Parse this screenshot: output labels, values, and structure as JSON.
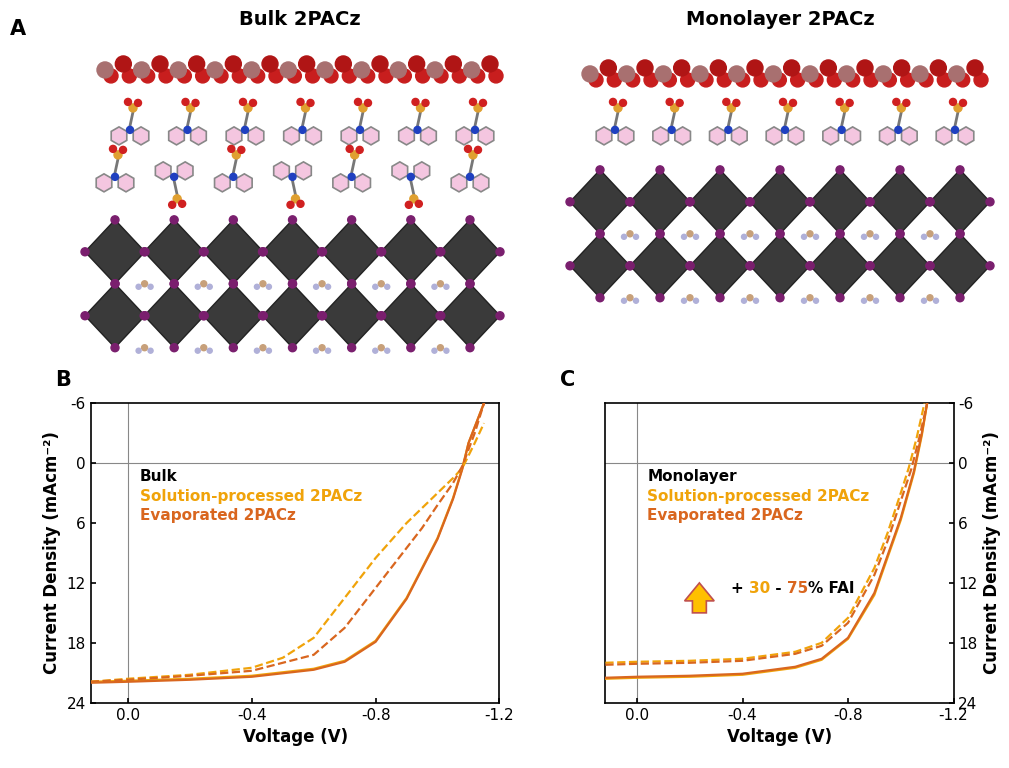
{
  "panel_a": {
    "label": "A",
    "diagrams": [
      {
        "title": "Bulk 2PACz"
      },
      {
        "title": "Monolayer 2PACz"
      }
    ]
  },
  "chart_data": [
    {
      "type": "line",
      "panel_label": "B",
      "x_label": "Voltage (V)",
      "y_label": "Current Density (mAcm⁻²)",
      "xlim": [
        0.12,
        -1.2
      ],
      "xticks": [
        {
          "value": 0,
          "label": "0.0"
        },
        -0.4,
        -0.8,
        -1.2
      ],
      "ylim": [
        24,
        -6
      ],
      "yticks": [
        -6,
        0,
        6,
        12,
        18,
        24
      ],
      "reference_lines": {
        "x": 0,
        "y": 0
      },
      "label_title": "Bulk",
      "series": [
        {
          "name": "Solution-processed 2PACz",
          "color": "#F0A30A",
          "line_style": "solid",
          "x": [
            0.12,
            0.0,
            -0.2,
            -0.4,
            -0.6,
            -0.7,
            -0.8,
            -0.9,
            -1.0,
            -1.05,
            -1.08,
            -1.1,
            -1.15
          ],
          "values": [
            21.9,
            21.8,
            21.6,
            21.3,
            20.6,
            19.8,
            17.8,
            13.5,
            7.5,
            3.5,
            0.5,
            -2.0,
            -6.0
          ]
        },
        {
          "name": "Evaporated 2PACz",
          "color": "#D9661F",
          "line_style": "solid",
          "x": [
            0.12,
            0.0,
            -0.2,
            -0.4,
            -0.6,
            -0.7,
            -0.8,
            -0.9,
            -1.0,
            -1.05,
            -1.08,
            -1.1,
            -1.15
          ],
          "values": [
            22.0,
            21.9,
            21.7,
            21.4,
            20.7,
            19.9,
            17.9,
            13.6,
            7.6,
            3.6,
            0.6,
            -2.0,
            -6.0
          ]
        },
        {
          "name": "Solution-processed 2PACz",
          "color": "#F0A30A",
          "line_style": "dashed",
          "x": [
            0.12,
            0.0,
            -0.2,
            -0.4,
            -0.5,
            -0.6,
            -0.7,
            -0.8,
            -0.9,
            -0.95,
            -1.0,
            -1.05,
            -1.08,
            -1.12,
            -1.15
          ],
          "values": [
            21.9,
            21.6,
            21.2,
            20.5,
            19.5,
            17.5,
            13.5,
            9.5,
            6.0,
            4.5,
            3.0,
            1.5,
            0.5,
            -2.0,
            -4.0
          ]
        },
        {
          "name": "Evaporated 2PACz",
          "color": "#D9661F",
          "line_style": "dashed",
          "x": [
            0.12,
            0.0,
            -0.2,
            -0.4,
            -0.6,
            -0.7,
            -0.8,
            -0.9,
            -0.95,
            -1.0,
            -1.05,
            -1.08,
            -1.12,
            -1.15
          ],
          "values": [
            21.9,
            21.7,
            21.3,
            20.8,
            19.2,
            16.5,
            12.5,
            8.5,
            6.5,
            4.2,
            2.0,
            0.3,
            -3.0,
            -6.0
          ]
        }
      ]
    },
    {
      "type": "line",
      "panel_label": "C",
      "x_label": "Voltage (V)",
      "y_label": "Current Density (mAcm⁻²)",
      "xlim": [
        0.12,
        -1.2
      ],
      "xticks": [
        {
          "value": 0,
          "label": "0.0"
        },
        -0.4,
        -0.8,
        -1.2
      ],
      "ylim": [
        24,
        -6
      ],
      "yticks": [
        -6,
        0,
        6,
        12,
        18,
        24
      ],
      "reference_lines": {
        "x": 0,
        "y": 0
      },
      "label_title": "Monolayer",
      "annotation": [
        {
          "text": "+ ",
          "color": "#000000"
        },
        {
          "text": "30",
          "color": "#F0A30A"
        },
        {
          "text": " - ",
          "color": "#000000"
        },
        {
          "text": "75",
          "color": "#D9661F"
        },
        {
          "text": "% FAI",
          "color": "#000000"
        }
      ],
      "series": [
        {
          "name": "Solution-processed 2PACz",
          "color": "#F0A30A",
          "line_style": "solid",
          "x": [
            0.12,
            0.0,
            -0.2,
            -0.4,
            -0.6,
            -0.7,
            -0.8,
            -0.9,
            -1.0,
            -1.05,
            -1.08,
            -1.1
          ],
          "values": [
            21.6,
            21.5,
            21.4,
            21.2,
            20.5,
            19.7,
            17.6,
            13.2,
            5.7,
            1.0,
            -2.8,
            -6.0
          ]
        },
        {
          "name": "Evaporated 2PACz",
          "color": "#D9661F",
          "line_style": "solid",
          "x": [
            0.12,
            0.0,
            -0.2,
            -0.4,
            -0.6,
            -0.7,
            -0.8,
            -0.9,
            -1.0,
            -1.05,
            -1.08,
            -1.1
          ],
          "values": [
            21.5,
            21.4,
            21.3,
            21.1,
            20.4,
            19.6,
            17.5,
            13.0,
            5.5,
            0.8,
            -3.0,
            -6.0
          ]
        },
        {
          "name": "Solution-processed 2PACz",
          "color": "#F0A30A",
          "line_style": "dashed",
          "x": [
            0.12,
            0.0,
            -0.2,
            -0.4,
            -0.6,
            -0.7,
            -0.8,
            -0.9,
            -0.95,
            -1.0,
            -1.03,
            -1.06,
            -1.09
          ],
          "values": [
            20.0,
            19.9,
            19.8,
            19.6,
            18.9,
            18.0,
            15.5,
            10.5,
            7.0,
            3.0,
            0.5,
            -2.5,
            -6.0
          ]
        },
        {
          "name": "Evaporated 2PACz",
          "color": "#D9661F",
          "line_style": "dashed",
          "x": [
            0.12,
            0.0,
            -0.2,
            -0.4,
            -0.6,
            -0.7,
            -0.8,
            -0.9,
            -0.95,
            -1.0,
            -1.04,
            -1.07,
            -1.1
          ],
          "values": [
            20.2,
            20.1,
            20.0,
            19.8,
            19.1,
            18.3,
            16.0,
            11.2,
            7.8,
            3.8,
            0.6,
            -2.5,
            -6.0
          ]
        }
      ]
    }
  ]
}
